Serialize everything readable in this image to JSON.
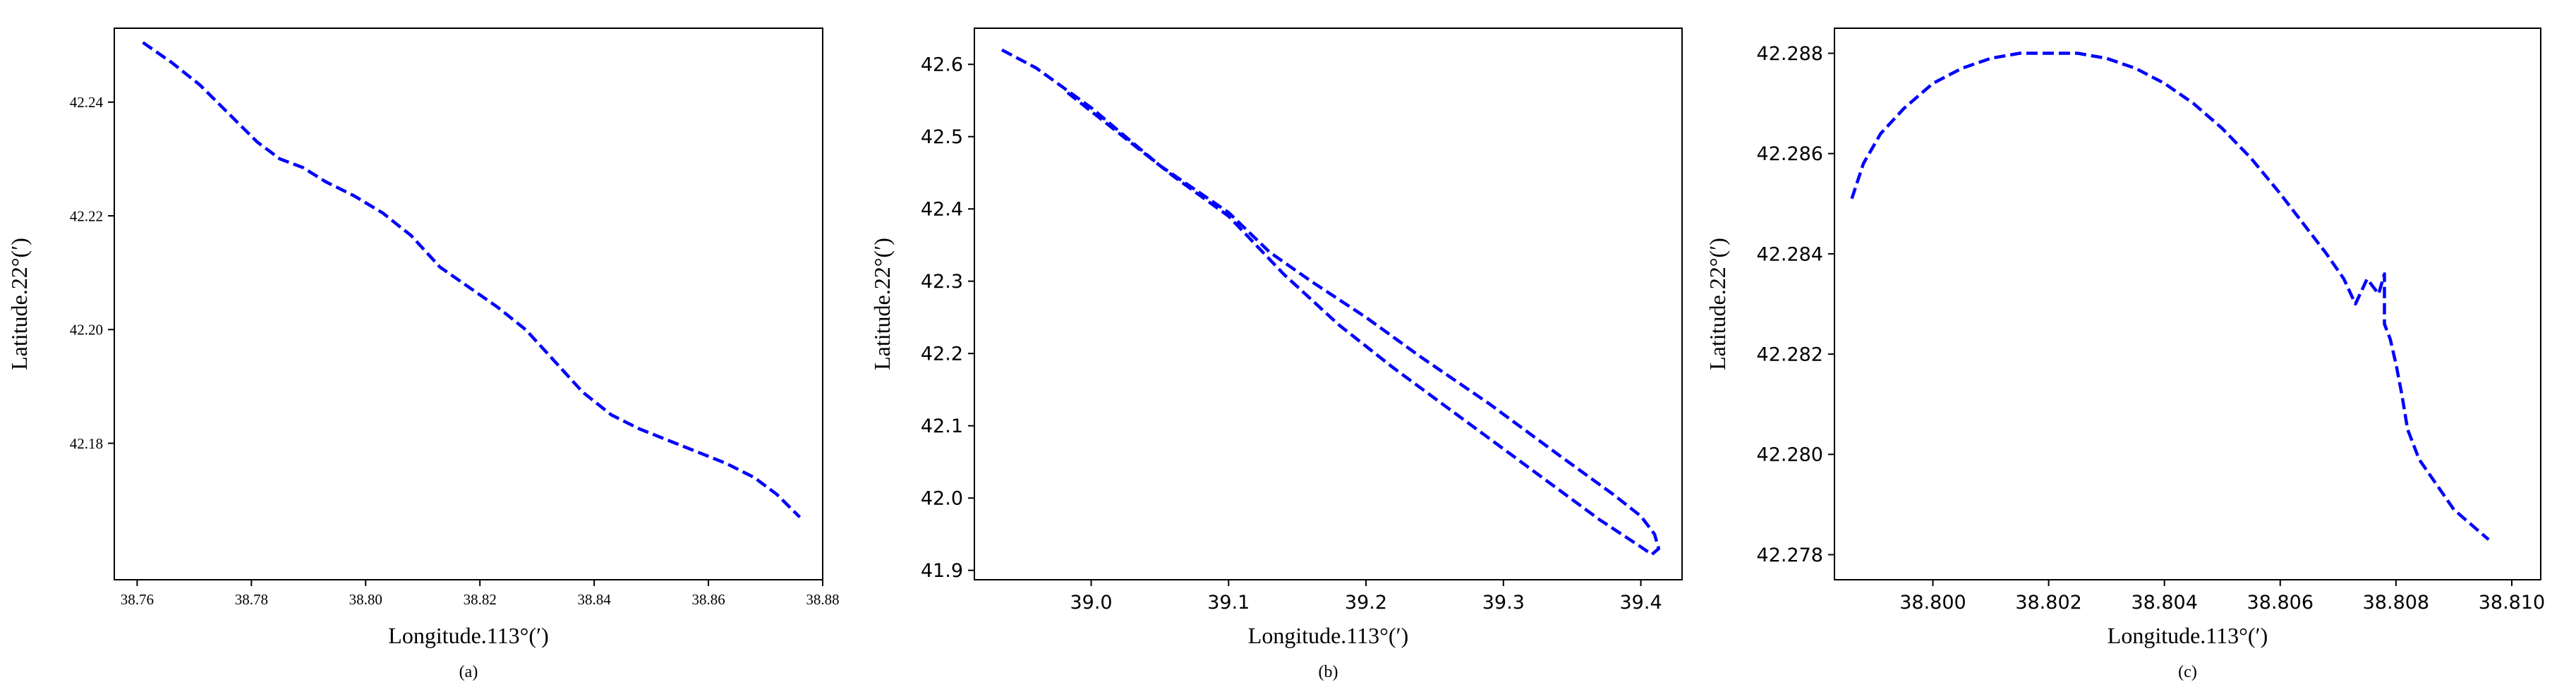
{
  "chart_data": [
    {
      "type": "line",
      "panel_label": "(a)",
      "xlabel": "Longitude.113°(′)",
      "ylabel": "Latitude.22°(′)",
      "xlim": [
        38.756,
        38.88
      ],
      "ylim": [
        42.156,
        42.253
      ],
      "xticks": [
        38.76,
        38.78,
        38.8,
        38.82,
        38.84,
        38.86,
        38.88
      ],
      "xtick_labels": [
        "38.76",
        "38.78",
        "38.80",
        "38.82",
        "38.84",
        "38.86",
        "38.88"
      ],
      "yticks": [
        42.18,
        42.2,
        42.22,
        42.24
      ],
      "ytick_labels": [
        "42.18",
        "42.20",
        "42.22",
        "42.24"
      ],
      "grid": false,
      "series": [
        {
          "color": "#0000ff",
          "style": "dashed",
          "x": [
            38.761,
            38.766,
            38.771,
            38.776,
            38.781,
            38.785,
            38.789,
            38.793,
            38.798,
            38.803,
            38.808,
            38.813,
            38.818,
            38.823,
            38.828,
            38.833,
            38.838,
            38.843,
            38.848,
            38.853,
            38.858,
            38.863,
            38.868,
            38.872,
            38.876
          ],
          "y": [
            42.2505,
            42.247,
            42.243,
            42.238,
            42.233,
            42.23,
            42.2285,
            42.226,
            42.2235,
            42.2205,
            42.2165,
            42.211,
            42.2075,
            42.204,
            42.2,
            42.1945,
            42.189,
            42.185,
            42.1825,
            42.1805,
            42.1785,
            42.1765,
            42.174,
            42.171,
            42.167
          ]
        }
      ]
    },
    {
      "type": "line",
      "panel_label": "(b)",
      "xlabel": "Longitude.113°(′)",
      "ylabel": "Latitude.22°(′)",
      "xlim": [
        38.915,
        39.43
      ],
      "ylim": [
        41.887,
        42.65
      ],
      "xticks": [
        39.0,
        39.1,
        39.2,
        39.3,
        39.4
      ],
      "xtick_labels": [
        "39.0",
        "39.1",
        "39.2",
        "39.3",
        "39.4"
      ],
      "yticks": [
        41.9,
        42.0,
        42.1,
        42.2,
        42.3,
        42.4,
        42.5,
        42.6
      ],
      "ytick_labels": [
        "41.9",
        "42.0",
        "42.1",
        "42.2",
        "42.3",
        "42.4",
        "42.5",
        "42.6"
      ],
      "grid": false,
      "series": [
        {
          "color": "#0000ff",
          "style": "dashed",
          "x": [
            38.935,
            38.96,
            39.0,
            39.05,
            39.1,
            39.13,
            39.16,
            39.2,
            39.24,
            39.29,
            39.34,
            39.38,
            39.4,
            39.41,
            39.413,
            39.408,
            39.398,
            39.37,
            39.32,
            39.27,
            39.22,
            39.18,
            39.14,
            39.1,
            39.06,
            39.02,
            38.98
          ],
          "y": [
            42.62,
            42.595,
            42.54,
            42.46,
            42.395,
            42.34,
            42.3,
            42.25,
            42.195,
            42.13,
            42.06,
            42.005,
            41.975,
            41.95,
            41.93,
            41.922,
            41.935,
            41.97,
            42.04,
            42.11,
            42.18,
            42.24,
            42.31,
            42.39,
            42.445,
            42.505,
            42.565
          ]
        }
      ]
    },
    {
      "type": "line",
      "panel_label": "(c)",
      "xlabel": "Longitude.113°(′)",
      "ylabel": "Latitude.22°(′)",
      "xlim": [
        38.7983,
        38.8105
      ],
      "ylim": [
        42.2775,
        42.2885
      ],
      "xticks": [
        38.8,
        38.802,
        38.804,
        38.806,
        38.808,
        38.81
      ],
      "xtick_labels": [
        "38.800",
        "38.802",
        "38.804",
        "38.806",
        "38.808",
        "38.810"
      ],
      "yticks": [
        42.278,
        42.28,
        42.282,
        42.284,
        42.286,
        42.288
      ],
      "ytick_labels": [
        "42.278",
        "42.280",
        "42.282",
        "42.284",
        "42.286",
        "42.288"
      ],
      "grid": false,
      "series": [
        {
          "color": "#0000ff",
          "style": "dashed",
          "x": [
            38.7986,
            38.7988,
            38.7991,
            38.7995,
            38.8,
            38.8005,
            38.801,
            38.8015,
            38.802,
            38.8025,
            38.803,
            38.8035,
            38.804,
            38.8045,
            38.805,
            38.8055,
            38.806,
            38.8064,
            38.8068,
            38.8071,
            38.8073,
            38.8075,
            38.8077,
            38.8078,
            38.8078,
            38.8079,
            38.808,
            38.8081,
            38.8082,
            38.8084,
            38.8087,
            38.809,
            38.8093,
            38.8096
          ],
          "y": [
            42.2851,
            42.2858,
            42.2864,
            42.2869,
            42.2874,
            42.2877,
            42.2879,
            42.288,
            42.288,
            42.288,
            42.2879,
            42.2877,
            42.2874,
            42.287,
            42.2865,
            42.2859,
            42.2852,
            42.2846,
            42.284,
            42.2835,
            42.283,
            42.2835,
            42.2832,
            42.2836,
            42.2826,
            42.2823,
            42.2818,
            42.2812,
            42.2805,
            42.2799,
            42.2794,
            42.2789,
            42.2786,
            42.2783
          ]
        }
      ]
    }
  ]
}
